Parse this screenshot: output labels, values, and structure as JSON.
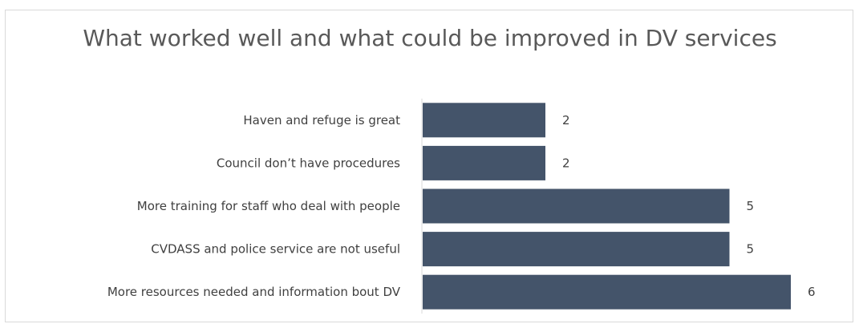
{
  "chart_data": {
    "type": "bar",
    "orientation": "horizontal",
    "title": "What worked well and what could be improved in DV services",
    "categories": [
      "Haven and refuge is great",
      "Council don’t have procedures",
      "More training for staff who deal with people",
      "CVDASS and police service are not useful",
      "More resources needed and information bout DV"
    ],
    "values": [
      2,
      2,
      5,
      5,
      6
    ],
    "xlim": [
      0,
      6.5
    ],
    "grid": false,
    "legend": "none",
    "bar_color": "#44546a"
  }
}
